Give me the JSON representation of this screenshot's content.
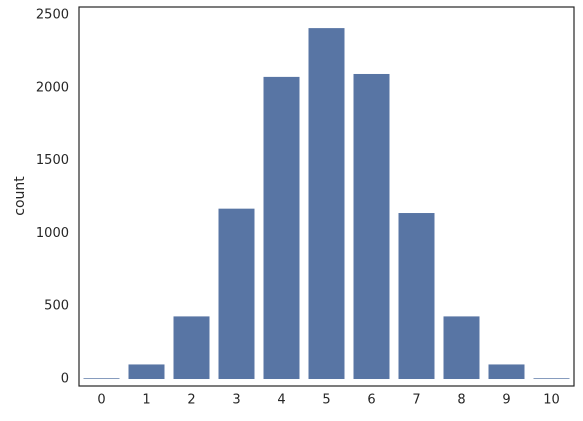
{
  "chart_data": {
    "type": "bar",
    "ylabel": "count",
    "categories": [
      "0",
      "1",
      "2",
      "3",
      "4",
      "5",
      "6",
      "7",
      "8",
      "9",
      "10"
    ],
    "values": [
      5,
      100,
      430,
      1170,
      2075,
      2410,
      2095,
      1140,
      430,
      100,
      5
    ],
    "color": "#5875a4",
    "ylim": [
      -48,
      2555
    ],
    "yticks": [
      0,
      500,
      1000,
      1500,
      2000,
      2500
    ],
    "grid": false
  }
}
